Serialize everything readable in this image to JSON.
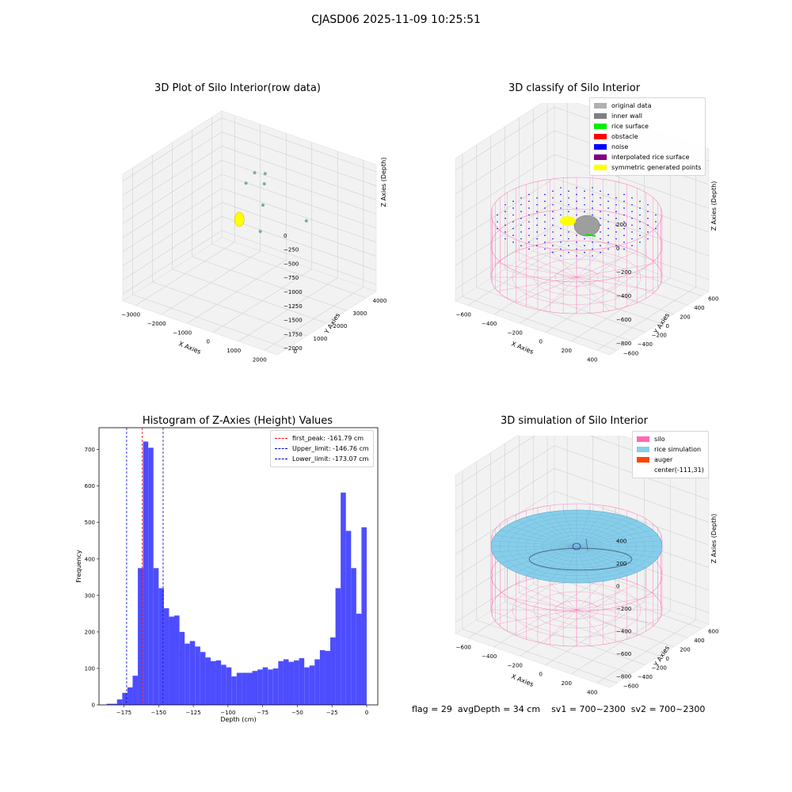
{
  "figure": {
    "suptitle": "CJASD06 2025-11-09 10:25:51",
    "footer": {
      "flag": "flag = 29",
      "avg_depth": "avgDepth = 34 cm",
      "sv1": "sv1 = 700~2300",
      "sv2": "sv2 = 700~2300"
    }
  },
  "panel_colors": {
    "original": "#b0b0b0",
    "inner_wall": "#808080",
    "rice_surface": "#00ee00",
    "obstacle": "#ff0000",
    "noise": "#0000ff",
    "interpolated": "#800080",
    "symmetric": "#ffff00",
    "silo": "#ff69b4",
    "rice_sim": "#87ceeb",
    "auger": "#ff4500",
    "hist_bar": "#4d4dff"
  },
  "chart_data": [
    {
      "type": "scatter",
      "title": "3D Plot of Silo Interior(row data)",
      "xlabel": "X Axies",
      "ylabel": "Y Axies",
      "zlabel": "Z Axies (Depth)",
      "x_ticks": [
        "−3000",
        "−2000",
        "−1000",
        "0",
        "1000",
        "2000"
      ],
      "y_ticks": [
        "0",
        "1000",
        "2000",
        "3000",
        "4000"
      ],
      "z_ticks": [
        "0",
        "−250",
        "−500",
        "−750",
        "−1000",
        "−1250",
        "−1500",
        "−1750",
        "−2000"
      ],
      "grid": true,
      "points": [
        {
          "x": -1400,
          "y": 3600,
          "z": -500
        },
        {
          "x": -1000,
          "y": 3600,
          "z": -450
        },
        {
          "x": -950,
          "y": 3500,
          "z": -600
        },
        {
          "x": -600,
          "y": 3000,
          "z": -800
        },
        {
          "x": -300,
          "y": 2500,
          "z": -1100
        },
        {
          "x": 1300,
          "y": 2700,
          "z": -700
        },
        {
          "x": -1650,
          "y": 3500,
          "z": -700
        }
      ]
    },
    {
      "type": "scatter",
      "title": "3D classify of Silo Interior",
      "xlabel": "X Axies",
      "ylabel": "Y Axies",
      "zlabel": "Z Axies (Depth)",
      "x_ticks": [
        "−600",
        "−400",
        "−200",
        "0",
        "200",
        "400"
      ],
      "y_ticks": [
        "−600",
        "−400",
        "−200",
        "0",
        "200",
        "400",
        "600"
      ],
      "z_ticks": [
        "200",
        "0",
        "−200",
        "−400",
        "−600",
        "−800"
      ],
      "grid": true,
      "legend": [
        "original data",
        "inner wall",
        "rice surface",
        "obstacle",
        "noise",
        "interpolated rice surface",
        "symmetric generated points"
      ],
      "legend_position": "top-right"
    },
    {
      "type": "bar",
      "title": "Histogram of Z-Axies (Height) Values",
      "xlabel": "Depth (cm)",
      "ylabel": "Frequency",
      "xlim": [
        -193,
        8
      ],
      "ylim": [
        0,
        760
      ],
      "x_ticks": [
        -175,
        -150,
        -125,
        -100,
        -75,
        -50,
        -25,
        0
      ],
      "x_tick_labels": [
        "−175",
        "−150",
        "−125",
        "−100",
        "−75",
        "−50",
        "−25",
        "0"
      ],
      "y_ticks": [
        0,
        100,
        200,
        300,
        400,
        500,
        600,
        700
      ],
      "bin_width": 3.75,
      "bin_start": -187.5,
      "values": [
        3,
        3,
        15,
        33,
        48,
        80,
        375,
        722,
        705,
        375,
        320,
        265,
        242,
        245,
        200,
        168,
        175,
        160,
        145,
        130,
        120,
        122,
        110,
        103,
        78,
        88,
        88,
        88,
        93,
        97,
        103,
        97,
        100,
        120,
        125,
        118,
        122,
        128,
        103,
        108,
        125,
        150,
        148,
        185,
        320,
        582,
        477,
        375,
        250,
        487
      ],
      "vlines": [
        {
          "label": "first_peak: -161.79 cm",
          "x": -161.79,
          "color": "#ff0000"
        },
        {
          "label": "Upper_limit: -146.76 cm",
          "x": -146.76,
          "color": "#0000cc"
        },
        {
          "label": "Lower_limit: -173.07 cm",
          "x": -173.07,
          "color": "#0000cc"
        }
      ],
      "legend_position": "top-right"
    },
    {
      "type": "area",
      "title": "3D simulation of Silo Interior",
      "xlabel": "X Axies",
      "ylabel": "Y Axies",
      "zlabel": "Z Axies (Depth)",
      "x_ticks": [
        "−600",
        "−400",
        "−200",
        "0",
        "200",
        "400"
      ],
      "y_ticks": [
        "−600",
        "−400",
        "−200",
        "0",
        "200",
        "400",
        "600"
      ],
      "z_ticks": [
        "400",
        "200",
        "0",
        "−200",
        "−400",
        "−600",
        "−800"
      ],
      "grid": true,
      "legend": [
        "silo",
        "rice simulation",
        "auger",
        "center(-111,31)"
      ],
      "legend_position": "top-right"
    }
  ]
}
